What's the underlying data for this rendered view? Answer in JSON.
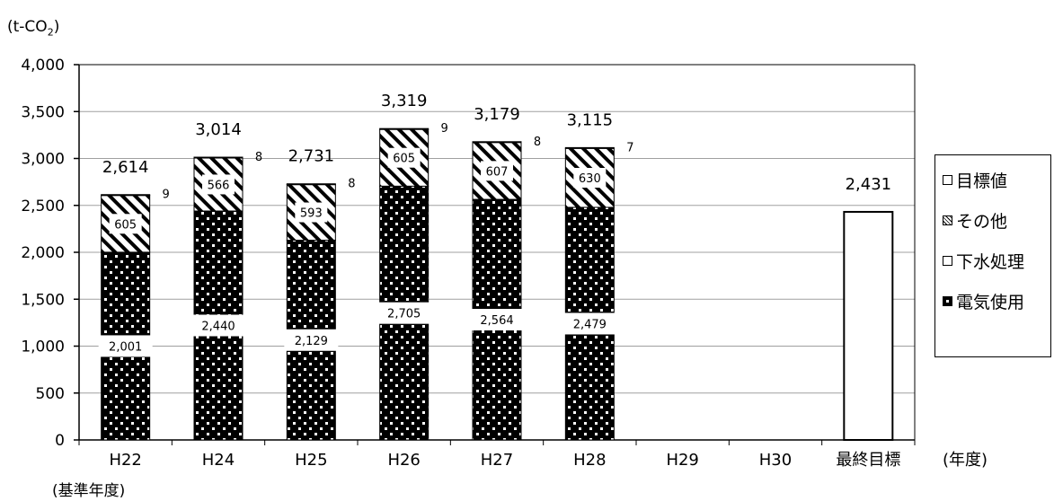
{
  "chart_data": {
    "type": "bar",
    "stacked": true,
    "unit_label": "(t-CO2)",
    "unit_base": "(t-CO",
    "unit_sub": "2",
    "unit_close": ")",
    "xlabel": "(年度)",
    "base_year_note": "(基準年度)",
    "categories": [
      "H22",
      "H24",
      "H25",
      "H26",
      "H27",
      "H28",
      "H29",
      "H30",
      "最終目標"
    ],
    "ylim": [
      0,
      4000
    ],
    "yticks": [
      0,
      500,
      1000,
      1500,
      2000,
      2500,
      3000,
      3500,
      4000
    ],
    "ytick_labels": [
      "0",
      "500",
      "1,000",
      "1,500",
      "2,000",
      "2,500",
      "3,000",
      "3,500",
      "4,000"
    ],
    "series": [
      {
        "name": "電気使用",
        "values": [
          2001,
          2440,
          2129,
          2705,
          2564,
          2479,
          null,
          null,
          null
        ],
        "labels": [
          "2,001",
          "2,440",
          "2,129",
          "2,705",
          "2,564",
          "2,479",
          "",
          "",
          ""
        ]
      },
      {
        "name": "下水処理",
        "values": [
          605,
          566,
          593,
          605,
          607,
          630,
          null,
          null,
          null
        ],
        "labels": [
          "605",
          "566",
          "593",
          "605",
          "607",
          "630",
          "",
          "",
          ""
        ]
      },
      {
        "name": "その他",
        "values": [
          9,
          8,
          8,
          9,
          8,
          7,
          null,
          null,
          null
        ],
        "labels": [
          "9",
          "8",
          "8",
          "9",
          "8",
          "7",
          "",
          "",
          ""
        ]
      },
      {
        "name": "目標値",
        "values": [
          null,
          null,
          null,
          null,
          null,
          null,
          null,
          null,
          2431
        ],
        "labels": [
          "",
          "",
          "",
          "",
          "",
          "",
          "",
          "",
          ""
        ]
      }
    ],
    "totals": [
      2614,
      3014,
      2731,
      3319,
      3179,
      3115,
      null,
      null,
      2431
    ],
    "total_labels": [
      "2,614",
      "3,014",
      "2,731",
      "3,319",
      "3,179",
      "3,115",
      "",
      "",
      "2,431"
    ],
    "legend": [
      "目標値",
      "その他",
      "下水処理",
      "電気使用"
    ],
    "legend_position": "right",
    "grid": true
  }
}
